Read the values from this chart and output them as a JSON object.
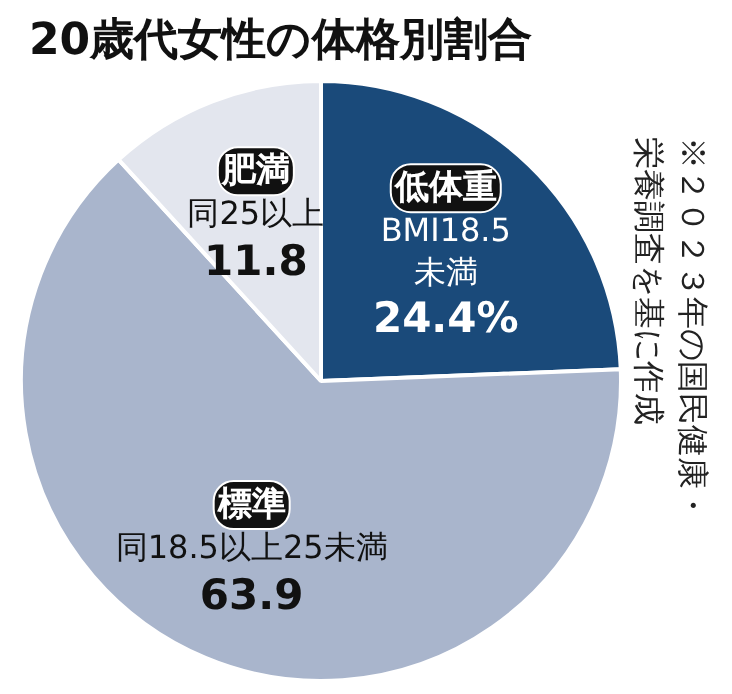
{
  "chart_data": {
    "type": "pie",
    "title": "20歳代女性の体格別割合",
    "categories": [
      "低体重",
      "標準",
      "肥満"
    ],
    "values": [
      24.4,
      63.9,
      11.8
    ],
    "colors": [
      "#1a4a7a",
      "#a9b5cc",
      "#e3e6ee"
    ],
    "value_labels": [
      "24.4%",
      "63.9",
      "11.8"
    ],
    "annotations": [
      {
        "text": "BMI18.5\n未満",
        "x": "低体重"
      },
      {
        "text": "同18.5以上25未満",
        "x": "標準"
      },
      {
        "text": "同25以上",
        "x": "肥満"
      },
      "※２０２３年の国民健康・栄養調査を基に作成"
    ]
  }
}
